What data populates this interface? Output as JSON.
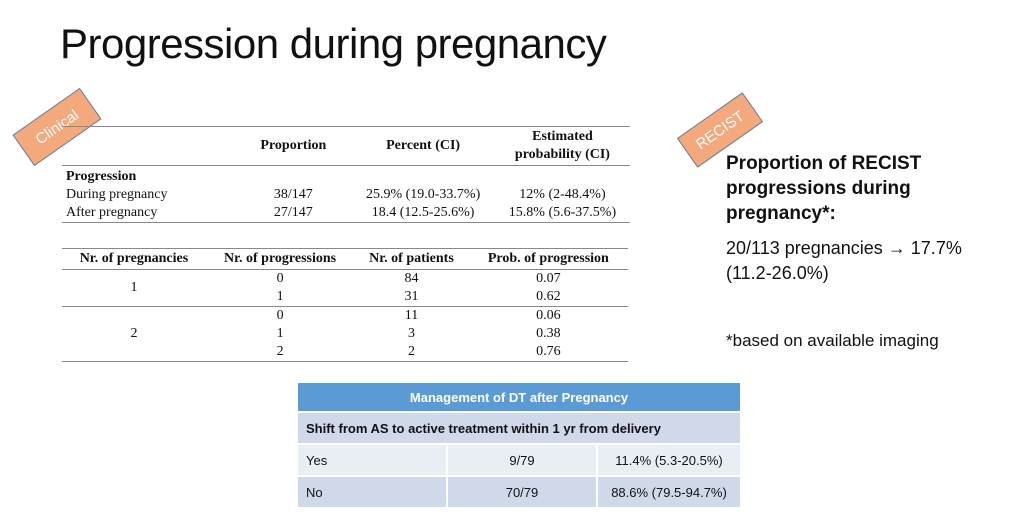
{
  "title": "Progression during pregnancy",
  "tags": {
    "clinical": "Clinical",
    "recist": "RECIST"
  },
  "clinical_table": {
    "headers": [
      "",
      "Proportion",
      "Percent (CI)",
      "Estimated probability (CI)"
    ],
    "section_label": "Progression",
    "rows": [
      {
        "label": "During pregnancy",
        "proportion": "38/147",
        "percent": "25.9% (19.0-33.7%)",
        "estimated": "12% (2-48.4%)"
      },
      {
        "label": "After pregnancy",
        "proportion": "27/147",
        "percent": "18.4 (12.5-25.6%)",
        "estimated": "15.8% (5.6-37.5%)"
      }
    ]
  },
  "pregnancy_table": {
    "headers": [
      "Nr. of pregnancies",
      "Nr. of progressions",
      "Nr. of patients",
      "Prob. of progression"
    ],
    "groups": [
      {
        "pregnancies": "1",
        "rows": [
          {
            "progressions": "0",
            "patients": "84",
            "prob": "0.07"
          },
          {
            "progressions": "1",
            "patients": "31",
            "prob": "0.62"
          }
        ]
      },
      {
        "pregnancies": "2",
        "rows": [
          {
            "progressions": "0",
            "patients": "11",
            "prob": "0.06"
          },
          {
            "progressions": "1",
            "patients": "3",
            "prob": "0.38"
          },
          {
            "progressions": "2",
            "patients": "2",
            "prob": "0.76"
          }
        ]
      }
    ]
  },
  "recist": {
    "heading": "Proportion of RECIST progressions during pregnancy*:",
    "value_line1": "20/113 pregnancies → 17.7%",
    "value_line2": "(11.2-26.0%)",
    "footnote": "*based on available imaging"
  },
  "management_table": {
    "title": "Management of DT after Pregnancy",
    "subtitle": "Shift from AS to active treatment within 1 yr from delivery",
    "rows": [
      {
        "label": "Yes",
        "fraction": "9/79",
        "percent": "11.4% (5.3-20.5%)"
      },
      {
        "label": "No",
        "fraction": "70/79",
        "percent": "88.6% (79.5-94.7%)"
      }
    ]
  },
  "colors": {
    "tag_fill": "#f3a97c",
    "table_header_blue": "#5b9bd5",
    "table_band_light": "#e9edf4",
    "table_band_dark": "#cfd9ea"
  }
}
